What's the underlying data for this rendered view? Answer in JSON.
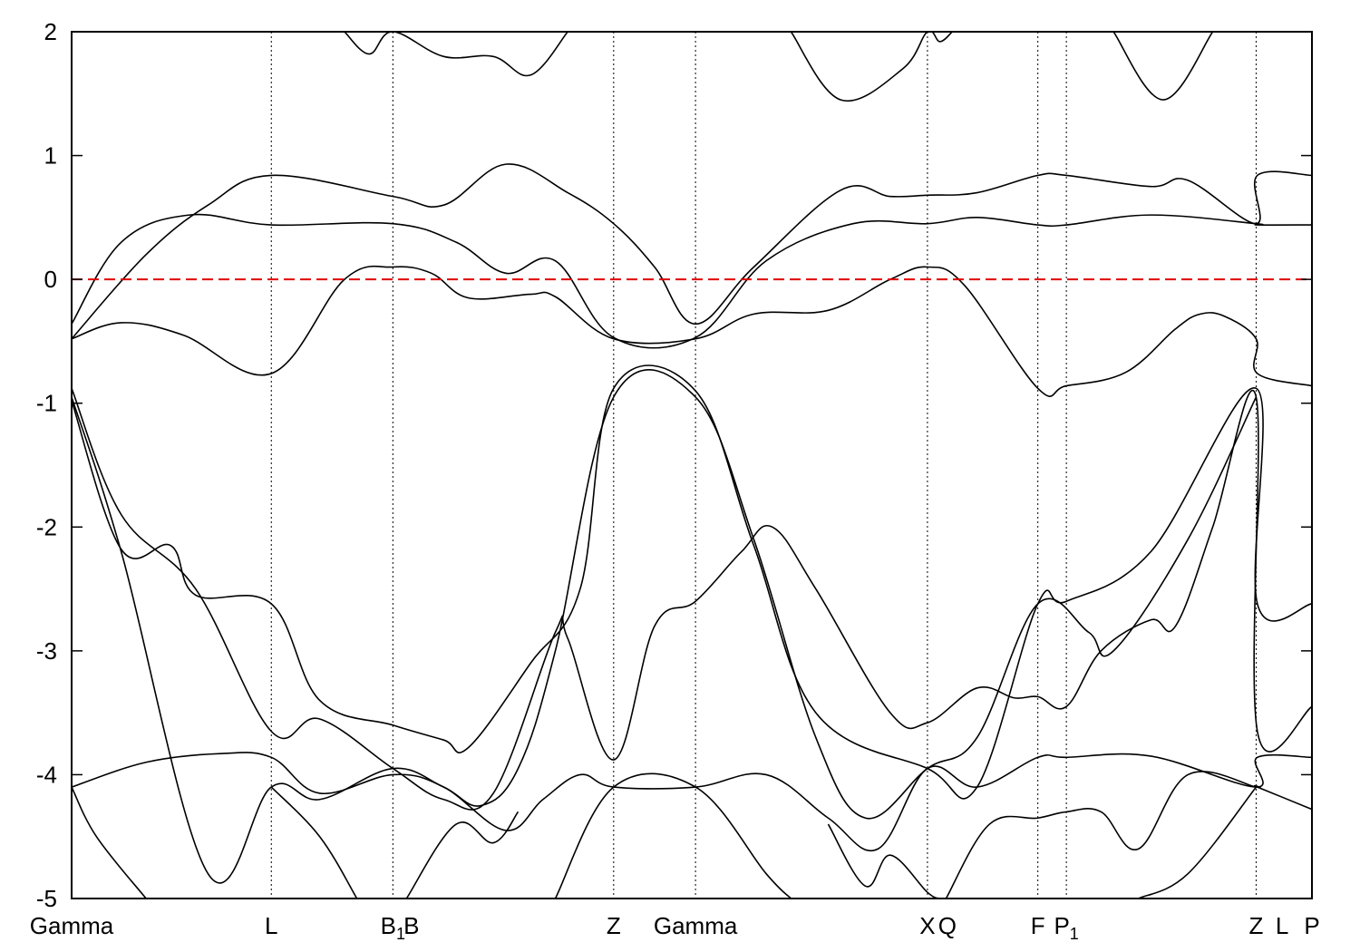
{
  "chart_data": {
    "type": "line",
    "title": "",
    "xlabel": "",
    "ylabel": "",
    "ylim": [
      -5,
      2
    ],
    "yticks": [
      2,
      1,
      0,
      -1,
      -2,
      -3,
      -4,
      -5
    ],
    "ytick_labels": [
      "2",
      "1",
      "0",
      "-1",
      "-2",
      "-3",
      "-4",
      "-5"
    ],
    "xlim": [
      0,
      1.0
    ],
    "kpoints": [
      {
        "label": "Gamma",
        "sub": "",
        "x": 0.0
      },
      {
        "label": "L",
        "sub": "",
        "x": 0.161
      },
      {
        "label": "B",
        "sub": "1",
        "x": 0.259
      },
      {
        "label": "B",
        "sub": "",
        "x": 0.274
      },
      {
        "label": "Z",
        "sub": "",
        "x": 0.437
      },
      {
        "label": "Gamma",
        "sub": "",
        "x": 0.503
      },
      {
        "label": "X",
        "sub": "",
        "x": 0.69
      },
      {
        "label": "Q",
        "sub": "",
        "x": 0.706
      },
      {
        "label": "F",
        "sub": "",
        "x": 0.779
      },
      {
        "label": "P",
        "sub": "1",
        "x": 0.802
      },
      {
        "label": "Z",
        "sub": "",
        "x": 0.955
      },
      {
        "label": "L",
        "sub": "",
        "x": 0.976
      },
      {
        "label": "P",
        "sub": "",
        "x": 1.0
      }
    ],
    "kpoint_lines_x": [
      0.161,
      0.259,
      0.437,
      0.503,
      0.69,
      0.779,
      0.802,
      0.955
    ],
    "fermi_level": 0.0,
    "grid": false,
    "series": [
      {
        "values": [
          [
            0.0,
            -0.36
          ],
          [
            0.04,
            0.3
          ],
          [
            0.095,
            0.52
          ],
          [
            0.161,
            0.44
          ],
          [
            0.259,
            0.45
          ],
          [
            0.31,
            0.3
          ],
          [
            0.35,
            0.05
          ],
          [
            0.39,
            0.15
          ],
          [
            0.437,
            -0.47
          ],
          [
            0.503,
            -0.47
          ],
          [
            0.56,
            0.15
          ],
          [
            0.63,
            0.45
          ],
          [
            0.69,
            0.45
          ],
          [
            0.73,
            0.5
          ],
          [
            0.779,
            0.44
          ],
          [
            0.802,
            0.44
          ],
          [
            0.87,
            0.52
          ],
          [
            0.955,
            0.45
          ],
          [
            0.956,
            0.44
          ],
          [
            1.0,
            0.44
          ]
        ]
      },
      {
        "values": [
          [
            0.0,
            -0.48
          ],
          [
            0.06,
            0.2
          ],
          [
            0.11,
            0.6
          ],
          [
            0.161,
            0.84
          ],
          [
            0.259,
            0.67
          ],
          [
            0.3,
            0.6
          ],
          [
            0.35,
            0.93
          ],
          [
            0.4,
            0.7
          ],
          [
            0.437,
            0.45
          ],
          [
            0.47,
            0.1
          ],
          [
            0.503,
            -0.36
          ],
          [
            0.55,
            0.1
          ],
          [
            0.62,
            0.72
          ],
          [
            0.66,
            0.67
          ],
          [
            0.69,
            0.68
          ],
          [
            0.73,
            0.7
          ],
          [
            0.779,
            0.84
          ],
          [
            0.802,
            0.84
          ],
          [
            0.87,
            0.75
          ],
          [
            0.9,
            0.8
          ],
          [
            0.955,
            0.45
          ],
          [
            0.956,
            0.84
          ],
          [
            1.0,
            0.84
          ]
        ]
      },
      {
        "values": [
          [
            0.0,
            -0.48
          ],
          [
            0.04,
            -0.35
          ],
          [
            0.09,
            -0.45
          ],
          [
            0.161,
            -0.76
          ],
          [
            0.22,
            0.0
          ],
          [
            0.259,
            0.1
          ],
          [
            0.29,
            0.05
          ],
          [
            0.32,
            -0.15
          ],
          [
            0.37,
            -0.12
          ],
          [
            0.39,
            -0.14
          ],
          [
            0.437,
            -0.48
          ],
          [
            0.503,
            -0.48
          ],
          [
            0.55,
            -0.28
          ],
          [
            0.61,
            -0.25
          ],
          [
            0.66,
            0.0
          ],
          [
            0.69,
            0.1
          ],
          [
            0.72,
            -0.05
          ],
          [
            0.779,
            -0.88
          ],
          [
            0.802,
            -0.86
          ],
          [
            0.85,
            -0.75
          ],
          [
            0.89,
            -0.4
          ],
          [
            0.91,
            -0.28
          ],
          [
            0.93,
            -0.3
          ],
          [
            0.955,
            -0.48
          ],
          [
            0.956,
            -0.76
          ],
          [
            1.0,
            -0.86
          ]
        ]
      },
      {
        "values": [
          [
            0.0,
            -0.88
          ],
          [
            0.04,
            -1.9
          ],
          [
            0.1,
            -2.5
          ],
          [
            0.161,
            -3.65
          ],
          [
            0.2,
            -3.55
          ],
          [
            0.259,
            -3.95
          ],
          [
            0.3,
            -4.2
          ],
          [
            0.34,
            -4.15
          ],
          [
            0.39,
            -2.85
          ],
          [
            0.4,
            -2.9
          ],
          [
            0.437,
            -3.88
          ],
          [
            0.47,
            -2.8
          ],
          [
            0.503,
            -2.6
          ],
          [
            0.54,
            -2.2
          ],
          [
            0.565,
            -2.0
          ],
          [
            0.6,
            -2.5
          ],
          [
            0.66,
            -3.5
          ],
          [
            0.69,
            -3.58
          ],
          [
            0.73,
            -3.3
          ],
          [
            0.76,
            -3.38
          ],
          [
            0.779,
            -3.37
          ],
          [
            0.802,
            -3.45
          ],
          [
            0.83,
            -3.0
          ],
          [
            0.87,
            -2.75
          ],
          [
            0.89,
            -2.8
          ],
          [
            0.92,
            -2.0
          ],
          [
            0.955,
            -0.95
          ],
          [
            0.956,
            -3.65
          ],
          [
            1.0,
            -3.45
          ]
        ]
      },
      {
        "values": [
          [
            0.0,
            -0.98
          ],
          [
            0.04,
            -2.18
          ],
          [
            0.08,
            -2.15
          ],
          [
            0.1,
            -2.55
          ],
          [
            0.161,
            -2.62
          ],
          [
            0.2,
            -3.4
          ],
          [
            0.259,
            -3.6
          ],
          [
            0.3,
            -3.72
          ],
          [
            0.32,
            -3.78
          ],
          [
            0.37,
            -3.1
          ],
          [
            0.41,
            -2.5
          ],
          [
            0.437,
            -0.88
          ],
          [
            0.503,
            -0.9
          ],
          [
            0.55,
            -2.15
          ],
          [
            0.6,
            -3.5
          ],
          [
            0.69,
            -3.95
          ],
          [
            0.73,
            -4.1
          ],
          [
            0.779,
            -2.62
          ],
          [
            0.802,
            -2.6
          ],
          [
            0.87,
            -2.2
          ],
          [
            0.955,
            -0.88
          ],
          [
            0.956,
            -2.62
          ],
          [
            1.0,
            -2.62
          ]
        ]
      },
      {
        "values": [
          [
            0.0,
            -0.95
          ],
          [
            0.04,
            -2.2
          ],
          [
            0.11,
            -4.8
          ],
          [
            0.161,
            -4.1
          ],
          [
            0.2,
            -4.2
          ],
          [
            0.259,
            -3.95
          ],
          [
            0.3,
            -4.1
          ],
          [
            0.33,
            -4.25
          ],
          [
            0.36,
            -3.95
          ],
          [
            0.39,
            -3.0
          ],
          [
            0.437,
            -0.95
          ],
          [
            0.503,
            -0.95
          ],
          [
            0.55,
            -2.1
          ],
          [
            0.6,
            -3.7
          ],
          [
            0.64,
            -4.35
          ],
          [
            0.69,
            -3.95
          ],
          [
            0.73,
            -3.7
          ],
          [
            0.779,
            -2.62
          ],
          [
            0.82,
            -2.85
          ],
          [
            0.84,
            -3.0
          ],
          [
            0.9,
            -2.1
          ],
          [
            0.955,
            -0.95
          ]
        ]
      },
      {
        "values": [
          [
            0.0,
            -4.1
          ],
          [
            0.06,
            -3.9
          ],
          [
            0.12,
            -3.83
          ],
          [
            0.161,
            -3.86
          ],
          [
            0.2,
            -4.15
          ],
          [
            0.259,
            -4.0
          ],
          [
            0.3,
            -4.1
          ],
          [
            0.35,
            -4.45
          ],
          [
            0.38,
            -4.2
          ],
          [
            0.41,
            -4.0
          ],
          [
            0.437,
            -4.1
          ],
          [
            0.503,
            -4.1
          ],
          [
            0.56,
            -4.0
          ],
          [
            0.61,
            -4.35
          ],
          [
            0.65,
            -4.6
          ],
          [
            0.69,
            -3.95
          ],
          [
            0.73,
            -4.1
          ],
          [
            0.779,
            -3.86
          ],
          [
            0.802,
            -3.86
          ],
          [
            0.87,
            -3.85
          ],
          [
            0.955,
            -4.1
          ],
          [
            0.956,
            -3.86
          ],
          [
            1.0,
            -3.86
          ]
        ]
      },
      {
        "values": [
          [
            0.0,
            -4.1
          ],
          [
            0.02,
            -4.5
          ],
          [
            0.06,
            -5.0
          ]
        ]
      },
      {
        "values": [
          [
            0.161,
            -4.1
          ],
          [
            0.2,
            -4.5
          ],
          [
            0.23,
            -5.0
          ]
        ]
      },
      {
        "values": [
          [
            0.27,
            -5.0
          ],
          [
            0.31,
            -4.4
          ],
          [
            0.34,
            -4.55
          ],
          [
            0.36,
            -4.3
          ]
        ]
      },
      {
        "values": [
          [
            0.39,
            -5.0
          ],
          [
            0.437,
            -4.1
          ],
          [
            0.503,
            -4.1
          ],
          [
            0.56,
            -4.8
          ],
          [
            0.58,
            -5.0
          ]
        ]
      },
      {
        "values": [
          [
            0.61,
            -4.4
          ],
          [
            0.64,
            -4.9
          ],
          [
            0.66,
            -4.65
          ],
          [
            0.69,
            -4.95
          ],
          [
            0.7,
            -5.0
          ]
        ]
      },
      {
        "values": [
          [
            0.705,
            -5.0
          ],
          [
            0.74,
            -4.4
          ],
          [
            0.779,
            -4.35
          ],
          [
            0.802,
            -4.3
          ],
          [
            0.83,
            -4.3
          ],
          [
            0.86,
            -4.6
          ],
          [
            0.9,
            -4.0
          ],
          [
            0.955,
            -4.1
          ],
          [
            0.956,
            -4.1
          ],
          [
            1.0,
            -4.28
          ]
        ]
      },
      {
        "values": [
          [
            0.86,
            -5.0
          ],
          [
            0.9,
            -4.8
          ],
          [
            0.955,
            -4.1
          ]
        ]
      },
      {
        "values": [
          [
            0.22,
            2.0
          ],
          [
            0.24,
            1.82
          ],
          [
            0.259,
            2.0
          ],
          [
            0.3,
            1.8
          ],
          [
            0.34,
            1.8
          ],
          [
            0.37,
            1.65
          ],
          [
            0.4,
            2.0
          ]
        ]
      },
      {
        "values": [
          [
            0.58,
            2.0
          ],
          [
            0.62,
            1.45
          ],
          [
            0.67,
            1.7
          ],
          [
            0.69,
            2.0
          ],
          [
            0.7,
            1.92
          ],
          [
            0.71,
            2.0
          ]
        ]
      },
      {
        "values": [
          [
            0.84,
            2.0
          ],
          [
            0.88,
            1.45
          ],
          [
            0.92,
            2.0
          ]
        ]
      }
    ]
  }
}
